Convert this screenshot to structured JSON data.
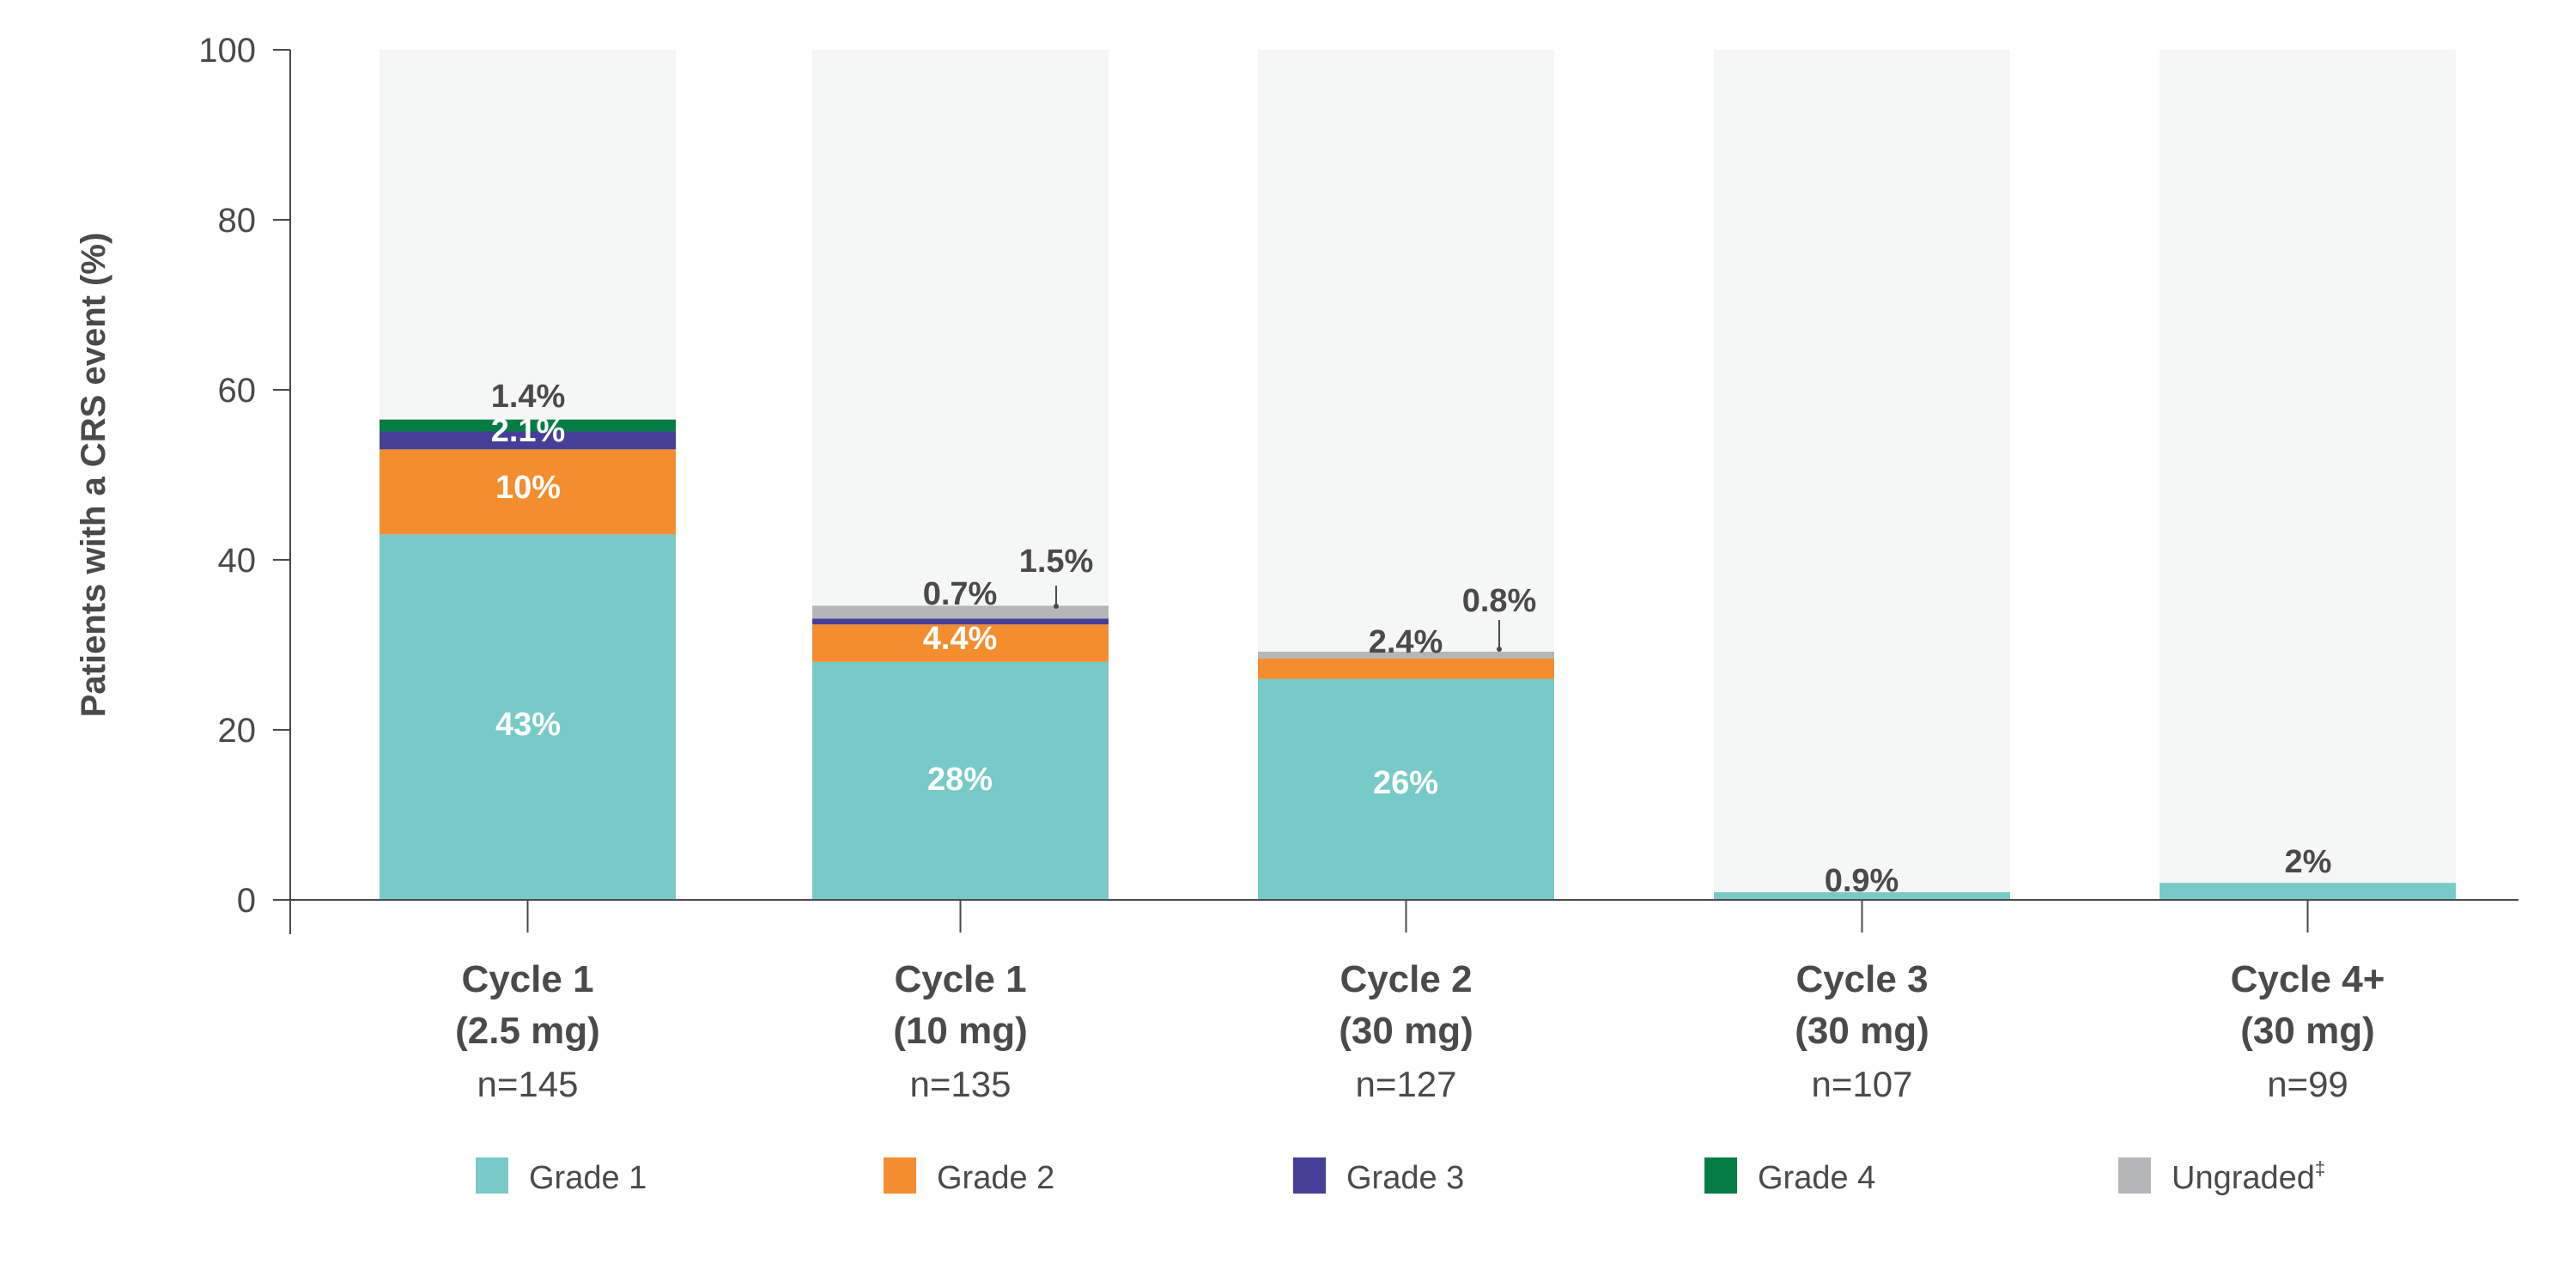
{
  "chart_data": {
    "type": "bar",
    "stacked": true,
    "title": "",
    "xlabel": "",
    "ylabel": "Patients with a CRS event (%)",
    "ylim": [
      0,
      100
    ],
    "yticks": [
      "0",
      "20",
      "40",
      "60",
      "80",
      "100"
    ],
    "grid": false,
    "legend_position": "bottom",
    "categories": [
      {
        "line1": "Cycle 1",
        "line2": "(2.5 mg)",
        "n": "n=145"
      },
      {
        "line1": "Cycle 1",
        "line2": "(10 mg)",
        "n": "n=135"
      },
      {
        "line1": "Cycle 2",
        "line2": "(30 mg)",
        "n": "n=127"
      },
      {
        "line1": "Cycle 3",
        "line2": "(30 mg)",
        "n": "n=107"
      },
      {
        "line1": "Cycle 4+",
        "line2": "(30 mg)",
        "n": "n=99"
      }
    ],
    "series": [
      {
        "name": "Grade 1",
        "color": "#77cac8",
        "values": [
          43,
          28,
          26,
          0.9,
          2
        ],
        "labels": [
          "43%",
          "28%",
          "26%",
          "0.9%",
          "2%"
        ]
      },
      {
        "name": "Grade 2",
        "color": "#f48d2e",
        "values": [
          10,
          4.4,
          2.4,
          0,
          0
        ],
        "labels": [
          "10%",
          "4.4%",
          "2.4%",
          "",
          ""
        ]
      },
      {
        "name": "Grade 3",
        "color": "#463f97",
        "values": [
          2.1,
          0.7,
          0,
          0,
          0
        ],
        "labels": [
          "2.1%",
          "0.7%",
          "",
          "",
          ""
        ]
      },
      {
        "name": "Grade 4",
        "color": "#037c43",
        "values": [
          1.4,
          0,
          0,
          0,
          0
        ],
        "labels": [
          "1.4%",
          "",
          "",
          "",
          ""
        ]
      },
      {
        "name": "Ungraded",
        "legend_mark": "‡",
        "color": "#b5b6b8",
        "values": [
          0,
          1.5,
          0.8,
          0,
          0
        ],
        "labels": [
          "",
          "1.5%",
          "0.8%",
          "",
          ""
        ]
      }
    ],
    "background_bar_color": "#f5f6f6",
    "text_color": "#4a4a4a"
  }
}
